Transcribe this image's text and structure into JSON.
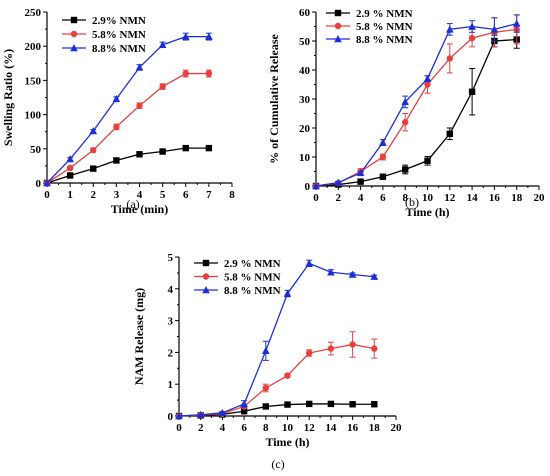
{
  "chart_data": [
    {
      "type": "line",
      "panel_label": "(a)",
      "xlabel": "Time (min)",
      "ylabel": "Swelling Ratio (%)",
      "xlim": [
        0,
        8
      ],
      "ylim": [
        0,
        250
      ],
      "xticks": [
        0,
        1,
        2,
        3,
        4,
        5,
        6,
        7,
        8
      ],
      "yticks": [
        0,
        50,
        100,
        150,
        200,
        250
      ],
      "legend_position": "top-left",
      "grid": false,
      "x": [
        0,
        1,
        2,
        3,
        4,
        5,
        6,
        7
      ],
      "series": [
        {
          "name": "2.9% NMN",
          "color": "#000000",
          "marker": "square",
          "values": [
            0,
            11,
            21,
            33,
            42,
            46,
            51,
            51
          ],
          "errors": [
            0,
            1,
            1.5,
            2,
            3,
            3,
            3,
            3
          ]
        },
        {
          "name": "5.8% NMN",
          "color": "#e8403f",
          "marker": "circle",
          "values": [
            0,
            22,
            48,
            82,
            113,
            141,
            160,
            160
          ],
          "errors": [
            0,
            2,
            3,
            4,
            4,
            4,
            5,
            5
          ]
        },
        {
          "name": "8.8% NMN",
          "color": "#1c2fd6",
          "marker": "triangle",
          "values": [
            0,
            35,
            76,
            123,
            169,
            202,
            214,
            214
          ],
          "errors": [
            0,
            2,
            2,
            3,
            4,
            4,
            5,
            5
          ]
        }
      ]
    },
    {
      "type": "line",
      "panel_label": "(b)",
      "xlabel": "Time (h)",
      "ylabel": "% of Cumulative Release",
      "xlim": [
        0,
        20
      ],
      "ylim": [
        0,
        60
      ],
      "xticks": [
        0,
        2,
        4,
        6,
        8,
        10,
        12,
        14,
        16,
        18,
        20
      ],
      "yticks": [
        0,
        10,
        20,
        30,
        40,
        50,
        60
      ],
      "legend_position": "top-left",
      "grid": false,
      "x": [
        0,
        2,
        4,
        6,
        8,
        10,
        12,
        14,
        16,
        18
      ],
      "series": [
        {
          "name": "2.9 % NMN",
          "color": "#000000",
          "marker": "square",
          "values": [
            0,
            0.5,
            1.5,
            3.2,
            5.7,
            8.7,
            18,
            32.5,
            50,
            50.5
          ],
          "errors": [
            0,
            0.3,
            0.5,
            0.8,
            1.5,
            1.5,
            2,
            8,
            2,
            3
          ]
        },
        {
          "name": "5.8 % NMN",
          "color": "#e8403f",
          "marker": "circle",
          "values": [
            0,
            1,
            5,
            10,
            22,
            35,
            44,
            51,
            53,
            54
          ],
          "errors": [
            0,
            0.3,
            1,
            1,
            3,
            3,
            5,
            3,
            5,
            5
          ]
        },
        {
          "name": "8.8 % NMN",
          "color": "#1c2fd6",
          "marker": "triangle",
          "values": [
            0,
            1.2,
            4.5,
            15,
            29,
            37,
            54,
            55,
            54,
            56
          ],
          "errors": [
            0,
            0.3,
            0.5,
            1,
            2,
            1,
            2,
            2,
            4,
            3
          ]
        }
      ]
    },
    {
      "type": "line",
      "panel_label": "(c)",
      "xlabel": "Time (h)",
      "ylabel": "NAM Release (mg)",
      "xlim": [
        0,
        20
      ],
      "ylim": [
        0,
        5
      ],
      "xticks": [
        0,
        2,
        4,
        6,
        8,
        10,
        12,
        14,
        16,
        18,
        20
      ],
      "yticks": [
        0,
        1,
        2,
        3,
        4,
        5
      ],
      "legend_position": "top-left",
      "grid": false,
      "x": [
        0,
        2,
        4,
        6,
        8,
        10,
        12,
        14,
        16,
        18
      ],
      "series": [
        {
          "name": "2.9 % NMN",
          "color": "#000000",
          "marker": "square",
          "values": [
            0,
            0.02,
            0.05,
            0.15,
            0.3,
            0.36,
            0.38,
            0.38,
            0.37,
            0.37
          ],
          "errors": [
            0,
            0.01,
            0.01,
            0.02,
            0.02,
            0.02,
            0.02,
            0.02,
            0.02,
            0.02
          ]
        },
        {
          "name": "5.8 % NMN",
          "color": "#e8403f",
          "marker": "circle",
          "values": [
            0,
            0.03,
            0.07,
            0.3,
            0.88,
            1.27,
            1.98,
            2.12,
            2.25,
            2.12
          ],
          "errors": [
            0,
            0.01,
            0.02,
            0.05,
            0.12,
            0.05,
            0.1,
            0.2,
            0.4,
            0.3
          ]
        },
        {
          "name": "8.8 % NMN",
          "color": "#1c2fd6",
          "marker": "triangle",
          "values": [
            0,
            0.04,
            0.1,
            0.38,
            2.05,
            3.85,
            4.8,
            4.52,
            4.45,
            4.38
          ],
          "errors": [
            0,
            0.01,
            0.02,
            0.1,
            0.3,
            0.1,
            0.1,
            0.08,
            0.05,
            0.05
          ]
        }
      ]
    }
  ]
}
